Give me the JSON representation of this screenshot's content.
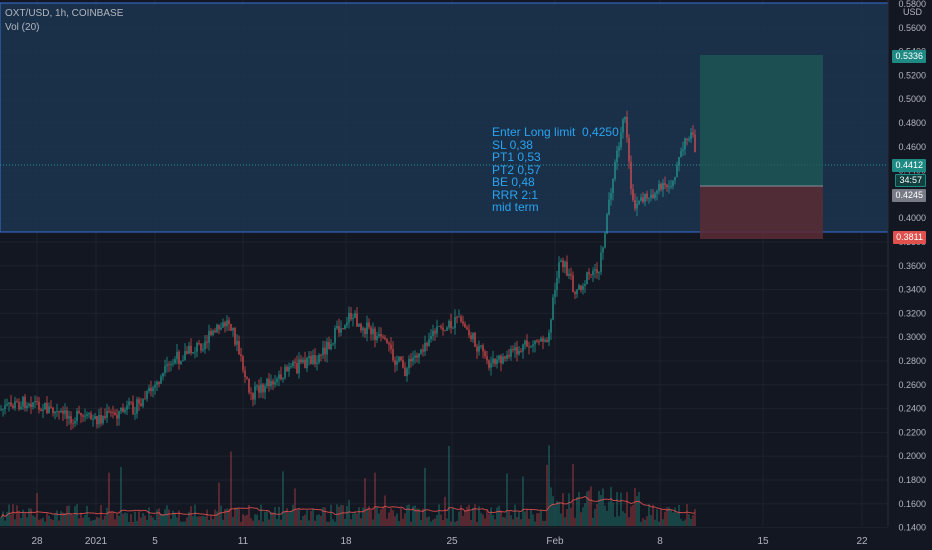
{
  "header": {
    "symbol_line": "OXT/USD, 1h, COINBASE",
    "indicator": "Vol (20)"
  },
  "axis": {
    "currency": "USD",
    "price_ticks": [
      "0.5800",
      "0.5600",
      "0.5400",
      "0.5200",
      "0.5000",
      "0.4800",
      "0.4600",
      "0.4400",
      "0.4200",
      "0.4000",
      "0.3800",
      "0.3600",
      "0.3400",
      "0.3200",
      "0.3000",
      "0.2800",
      "0.2600",
      "0.2400",
      "0.2200",
      "0.2000",
      "0.1800",
      "0.1600",
      "0.1400"
    ],
    "time_ticks": [
      "28",
      "2021",
      "5",
      "11",
      "18",
      "25",
      "Feb",
      "8",
      "15",
      "22"
    ]
  },
  "annotation": {
    "lines": [
      "Enter Long limit  0,4250",
      "SL 0,38",
      "PT1 0,53",
      "PT2 0,57",
      "BE 0,48",
      "RRR 2:1",
      "mid term"
    ]
  },
  "price_tags": {
    "target": "0.5336",
    "current": "0.4412",
    "countdown": "34:57",
    "entry": "0.4245",
    "stop": "0.3811"
  },
  "colors": {
    "background": "#131722",
    "bull": "#26a69a",
    "bear": "#ef5350",
    "zone": "#1f3a55",
    "zone_line": "#3a6fd8",
    "annotation": "#2aa3f0"
  }
}
